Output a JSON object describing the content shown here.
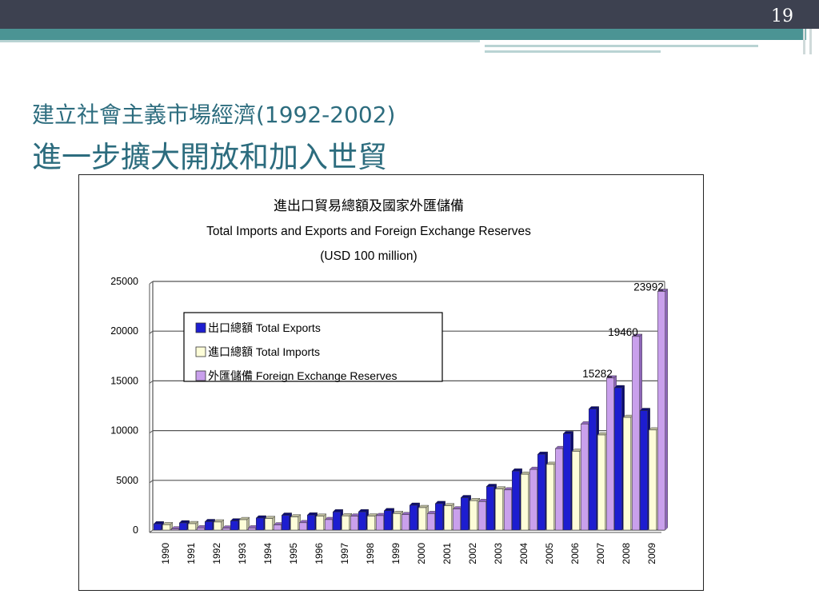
{
  "slide": {
    "number": "19",
    "title_line1": "建立社會主義市場經濟(1992-2002)",
    "title_line2": "進一步擴大開放和加入世貿"
  },
  "colors": {
    "exports": "#1d1dd0",
    "imports": "#fdfdd8",
    "reserves": "#c9a0ec",
    "header_bar": "#3d4150",
    "teal_bar": "#4b9494",
    "title_text": "#2c6c7e"
  },
  "chart_data": {
    "type": "bar",
    "title": "進出口貿易總額及國家外匯儲備",
    "subtitle": "Total Imports and Exports and Foreign Exchange Reserves",
    "unit": "(USD 100 million)",
    "categories": [
      "1990",
      "1991",
      "1992",
      "1993",
      "1994",
      "1995",
      "1996",
      "1997",
      "1998",
      "1999",
      "2000",
      "2001",
      "2002",
      "2003",
      "2004",
      "2005",
      "2006",
      "2007",
      "2008",
      "2009"
    ],
    "series": [
      {
        "name": "出口總額 Total Exports",
        "values": [
          620,
          719,
          849,
          917,
          1210,
          1488,
          1511,
          1828,
          1837,
          1949,
          2492,
          2661,
          3256,
          4382,
          5933,
          7620,
          9689,
          12178,
          14307,
          12016
        ]
      },
      {
        "name": "進口總額 Total Imports",
        "values": [
          534,
          638,
          806,
          1040,
          1156,
          1321,
          1388,
          1424,
          1402,
          1657,
          2251,
          2436,
          2952,
          4128,
          5612,
          6600,
          7915,
          9561,
          11326,
          10059
        ]
      },
      {
        "name": "外匯儲備 Foreign Exchange Reserves",
        "values": [
          111,
          217,
          194,
          212,
          516,
          736,
          1050,
          1399,
          1450,
          1547,
          1656,
          2122,
          2864,
          4033,
          6099,
          8189,
          10663,
          15282,
          19460,
          23992
        ]
      }
    ],
    "data_labels": [
      {
        "category": "2007",
        "value": "15282"
      },
      {
        "category": "2008",
        "value": "19460"
      },
      {
        "category": "2009",
        "value": "23992"
      }
    ],
    "y_ticks": [
      "0",
      "5000",
      "10000",
      "15000",
      "20000",
      "25000"
    ],
    "ylim": [
      0,
      25000
    ],
    "grid": true,
    "legend_position": "upper-left"
  }
}
